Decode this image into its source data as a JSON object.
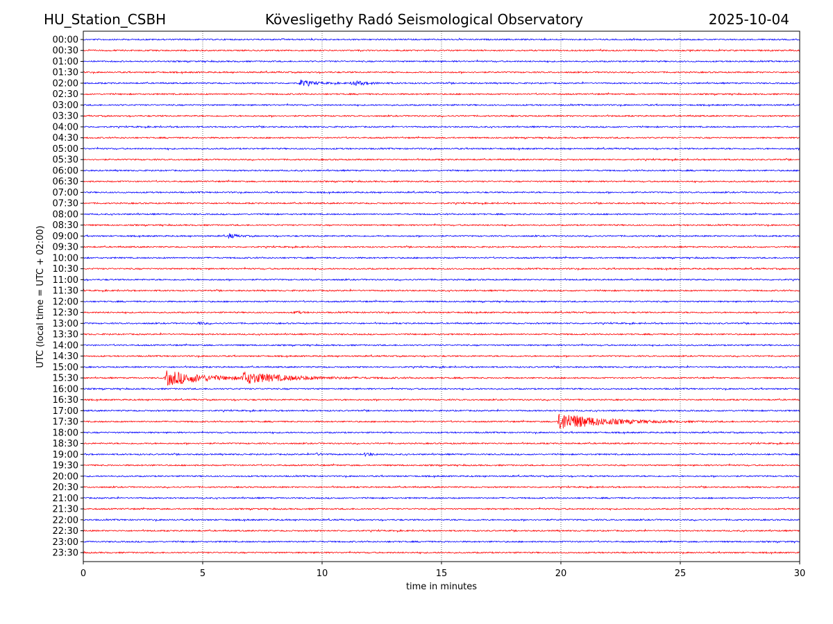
{
  "chart_data": {
    "type": "line",
    "title_left": "HU_Station_CSBH",
    "title_center": "Kövesligethy Radó Seismological Observatory",
    "title_right": "2025-10-04",
    "xlabel": "time in minutes",
    "ylabel": "UTC (local time = UTC + 02:00)",
    "xlim": [
      0,
      30
    ],
    "xticks": [
      "0",
      "5",
      "10",
      "15",
      "20",
      "25",
      "30"
    ],
    "grid": "vertical dotted",
    "colors": [
      "#0000ff",
      "#ff0000"
    ],
    "row_labels": [
      "00:00",
      "00:30",
      "01:00",
      "01:30",
      "02:00",
      "02:30",
      "03:00",
      "03:30",
      "04:00",
      "04:30",
      "05:00",
      "05:30",
      "06:00",
      "06:30",
      "07:00",
      "07:30",
      "08:00",
      "08:30",
      "09:00",
      "09:30",
      "10:00",
      "10:30",
      "11:00",
      "11:30",
      "12:00",
      "12:30",
      "13:00",
      "13:30",
      "14:00",
      "14:30",
      "15:00",
      "15:30",
      "16:00",
      "16:30",
      "17:00",
      "17:30",
      "18:00",
      "18:30",
      "19:00",
      "19:30",
      "20:00",
      "20:30",
      "21:00",
      "21:30",
      "22:00",
      "22:30",
      "23:00",
      "23:30"
    ],
    "events": [
      {
        "row": "02:00",
        "start_min": 9.0,
        "peak_amp": 0.35,
        "decay_min": 0.5
      },
      {
        "row": "02:00",
        "start_min": 11.2,
        "peak_amp": 0.3,
        "decay_min": 0.5
      },
      {
        "row": "09:00",
        "start_min": 6.0,
        "peak_amp": 0.3,
        "decay_min": 0.3
      },
      {
        "row": "12:30",
        "start_min": 8.8,
        "peak_amp": 0.2,
        "decay_min": 0.2
      },
      {
        "row": "13:00",
        "start_min": 4.75,
        "peak_amp": 0.2,
        "decay_min": 0.2
      },
      {
        "row": "15:30",
        "start_min": 3.4,
        "peak_amp": 0.75,
        "decay_min": 1.5
      },
      {
        "row": "15:30",
        "start_min": 6.6,
        "peak_amp": 0.5,
        "decay_min": 1.8
      },
      {
        "row": "17:30",
        "start_min": 19.85,
        "peak_amp": 0.9,
        "decay_min": 1.6
      },
      {
        "row": "19:00",
        "start_min": 9.6,
        "peak_amp": 0.15,
        "decay_min": 0.3
      },
      {
        "row": "19:00",
        "start_min": 11.75,
        "peak_amp": 0.3,
        "decay_min": 0.2
      }
    ]
  }
}
